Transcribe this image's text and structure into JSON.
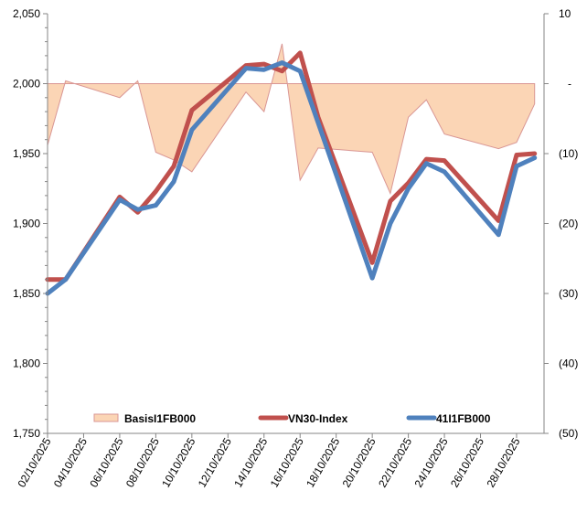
{
  "chart_data": {
    "type": "line",
    "title": "",
    "dates": [
      "02/10/2025",
      "03/10/2025",
      "06/10/2025",
      "07/10/2025",
      "08/10/2025",
      "09/10/2025",
      "10/10/2025",
      "13/10/2025",
      "14/10/2025",
      "15/10/2025",
      "16/10/2025",
      "17/10/2025",
      "20/10/2025",
      "21/10/2025",
      "22/10/2025",
      "23/10/2025",
      "24/10/2025",
      "27/10/2025",
      "28/10/2025",
      "29/10/2025"
    ],
    "x_tick_labels": [
      "02/10/2025",
      "04/10/2025",
      "06/10/2025",
      "08/10/2025",
      "10/10/2025",
      "12/10/2025",
      "14/10/2025",
      "16/10/2025",
      "18/10/2025",
      "20/10/2025",
      "22/10/2025",
      "24/10/2025",
      "26/10/2025",
      "28/10/2025"
    ],
    "y_left": {
      "range": [
        1750,
        2050
      ],
      "ticks": [
        "2,050",
        "2,000",
        "1,950",
        "1,900",
        "1,850",
        "1,800",
        "1,750"
      ]
    },
    "y_right": {
      "range": [
        -50,
        10
      ],
      "ticks": [
        "10",
        "-",
        "(10)",
        "(20)",
        "(30)",
        "(40)",
        "(50)"
      ]
    },
    "grid": false,
    "legend_placement": "bottom-inside",
    "series": [
      {
        "name": "BasisI1FB000",
        "type": "area",
        "axis": "right",
        "color": "#fbd5b5",
        "stroke": "#d99694",
        "values": [
          -8.8,
          0.4,
          -2.0,
          0.4,
          -9.8,
          -10.9,
          -12.6,
          -1.2,
          -4.0,
          5.7,
          -13.8,
          -9.2,
          -9.8,
          -15.7,
          -4.8,
          -2.3,
          -7.2,
          -9.3,
          -8.4,
          -2.9
        ]
      },
      {
        "name": "VN30-Index",
        "type": "line",
        "axis": "left",
        "color": "#c0504d",
        "values": [
          1860,
          1860,
          1919,
          1908,
          1923,
          1941,
          1981,
          2013,
          2014,
          2009,
          2022,
          1976,
          1872,
          1916,
          1929,
          1946,
          1945,
          1902,
          1949,
          1950
        ]
      },
      {
        "name": "41I1FB000",
        "type": "line",
        "axis": "left",
        "color": "#4f81bd",
        "values": [
          1850,
          1860,
          1917,
          1910,
          1913,
          1930,
          1967,
          2011,
          2010,
          2015,
          2009,
          1972,
          1861,
          1900,
          1925,
          1943,
          1937,
          1892,
          1941,
          1947
        ]
      }
    ]
  }
}
